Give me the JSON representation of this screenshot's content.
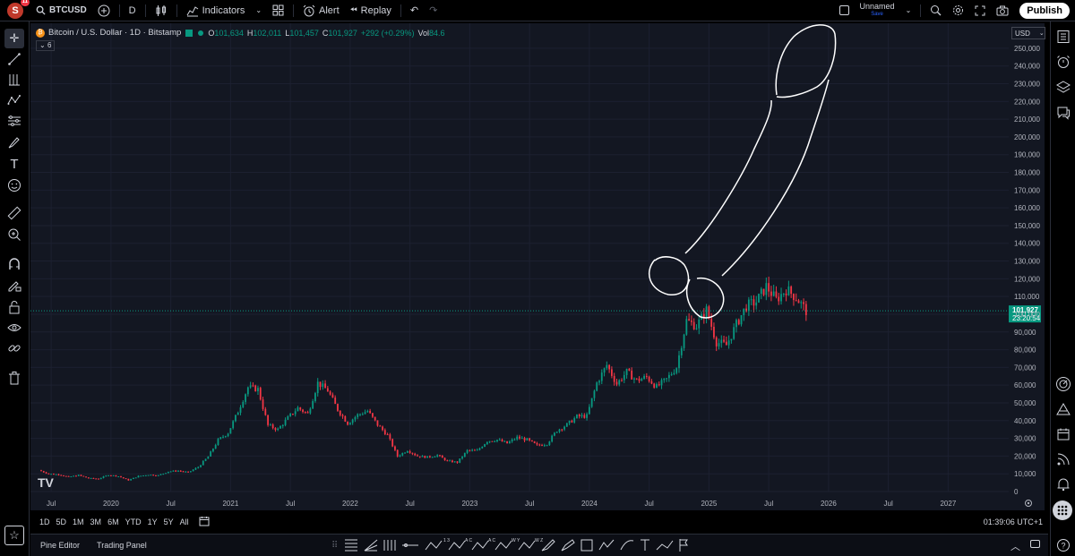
{
  "top": {
    "avatar_letter": "S",
    "avatar_badge": "11",
    "symbol": "BTCUSD",
    "interval": "D",
    "indicators": "Indicators",
    "alert": "Alert",
    "replay": "Replay",
    "layout_name": "Unnamed",
    "layout_status": "Save",
    "publish": "Publish"
  },
  "legend": {
    "title": "Bitcoin / U.S. Dollar · 1D · Bitstamp",
    "o_lbl": "O",
    "o": "101,634",
    "h_lbl": "H",
    "h": "102,011",
    "l_lbl": "L",
    "l": "101,457",
    "c_lbl": "C",
    "c": "101,927",
    "change": "+292 (+0.29%)",
    "vol_lbl": "Vol",
    "vol": "84.6",
    "collapse": "6"
  },
  "price_scale": {
    "currency": "USD",
    "labels": [
      "250,000",
      "240,000",
      "230,000",
      "220,000",
      "210,000",
      "200,000",
      "190,000",
      "180,000",
      "170,000",
      "160,000",
      "150,000",
      "140,000",
      "130,000",
      "120,000",
      "110,000",
      "100,000",
      "90,000",
      "80,000",
      "70,000",
      "60,000",
      "50,000",
      "40,000",
      "30,000",
      "20,000",
      "10,000",
      "0"
    ],
    "current_price": "101,927",
    "countdown": "23:20:54"
  },
  "time_scale": {
    "labels": [
      "Jul",
      "2020",
      "Jul",
      "2021",
      "Jul",
      "2022",
      "Jul",
      "2023",
      "Jul",
      "2024",
      "Jul",
      "2025",
      "Jul",
      "2026",
      "Jul",
      "2027"
    ]
  },
  "ranges": [
    "1D",
    "5D",
    "1M",
    "3M",
    "6M",
    "YTD",
    "1Y",
    "5Y",
    "All"
  ],
  "clock": "01:39:06 UTC+1",
  "footer": {
    "pine_editor": "Pine Editor",
    "trading_panel": "Trading Panel",
    "drawing_letters": [
      "1 3",
      "A C",
      "A C",
      "W Y",
      "W Z"
    ]
  },
  "watermark": "TV",
  "colors": {
    "up": "#089981",
    "down": "#f23645",
    "background": "#131722",
    "price_tag": "#089981"
  },
  "chart_data": {
    "type": "candlestick",
    "title": "Bitcoin / U.S. Dollar · 1D · Bitstamp",
    "ylabel": "USD",
    "ylim": [
      0,
      255000
    ],
    "x_range": [
      "2019-06",
      "2027-06"
    ],
    "close_series": [
      {
        "x": "2019-06",
        "y": 12000
      },
      {
        "x": "2019-07",
        "y": 10000
      },
      {
        "x": "2019-08",
        "y": 9600
      },
      {
        "x": "2019-09",
        "y": 8300
      },
      {
        "x": "2019-10",
        "y": 9200
      },
      {
        "x": "2019-11",
        "y": 7500
      },
      {
        "x": "2019-12",
        "y": 7200
      },
      {
        "x": "2020-01",
        "y": 9400
      },
      {
        "x": "2020-02",
        "y": 8600
      },
      {
        "x": "2020-03",
        "y": 6400
      },
      {
        "x": "2020-04",
        "y": 8700
      },
      {
        "x": "2020-05",
        "y": 9500
      },
      {
        "x": "2020-06",
        "y": 9100
      },
      {
        "x": "2020-07",
        "y": 11300
      },
      {
        "x": "2020-08",
        "y": 11700
      },
      {
        "x": "2020-09",
        "y": 10800
      },
      {
        "x": "2020-10",
        "y": 13800
      },
      {
        "x": "2020-11",
        "y": 19700
      },
      {
        "x": "2020-12",
        "y": 29000
      },
      {
        "x": "2021-01",
        "y": 33100
      },
      {
        "x": "2021-02",
        "y": 45200
      },
      {
        "x": "2021-03",
        "y": 58800
      },
      {
        "x": "2021-04",
        "y": 57700
      },
      {
        "x": "2021-05",
        "y": 37300
      },
      {
        "x": "2021-06",
        "y": 35000
      },
      {
        "x": "2021-07",
        "y": 41500
      },
      {
        "x": "2021-08",
        "y": 47100
      },
      {
        "x": "2021-09",
        "y": 43800
      },
      {
        "x": "2021-10",
        "y": 61300
      },
      {
        "x": "2021-11",
        "y": 57000
      },
      {
        "x": "2021-12",
        "y": 46200
      },
      {
        "x": "2022-01",
        "y": 38500
      },
      {
        "x": "2022-02",
        "y": 43200
      },
      {
        "x": "2022-03",
        "y": 45500
      },
      {
        "x": "2022-04",
        "y": 37600
      },
      {
        "x": "2022-05",
        "y": 31800
      },
      {
        "x": "2022-06",
        "y": 19900
      },
      {
        "x": "2022-07",
        "y": 23300
      },
      {
        "x": "2022-08",
        "y": 20000
      },
      {
        "x": "2022-09",
        "y": 19400
      },
      {
        "x": "2022-10",
        "y": 20500
      },
      {
        "x": "2022-11",
        "y": 17200
      },
      {
        "x": "2022-12",
        "y": 16500
      },
      {
        "x": "2023-01",
        "y": 23100
      },
      {
        "x": "2023-02",
        "y": 23100
      },
      {
        "x": "2023-03",
        "y": 28500
      },
      {
        "x": "2023-04",
        "y": 29200
      },
      {
        "x": "2023-05",
        "y": 27200
      },
      {
        "x": "2023-06",
        "y": 30500
      },
      {
        "x": "2023-07",
        "y": 29200
      },
      {
        "x": "2023-08",
        "y": 26000
      },
      {
        "x": "2023-09",
        "y": 27000
      },
      {
        "x": "2023-10",
        "y": 34500
      },
      {
        "x": "2023-11",
        "y": 37700
      },
      {
        "x": "2023-12",
        "y": 42300
      },
      {
        "x": "2024-01",
        "y": 42600
      },
      {
        "x": "2024-02",
        "y": 61200
      },
      {
        "x": "2024-03",
        "y": 71300
      },
      {
        "x": "2024-04",
        "y": 60700
      },
      {
        "x": "2024-05",
        "y": 67500
      },
      {
        "x": "2024-06",
        "y": 62700
      },
      {
        "x": "2024-07",
        "y": 64600
      },
      {
        "x": "2024-08",
        "y": 58900
      },
      {
        "x": "2024-09",
        "y": 63300
      },
      {
        "x": "2024-10",
        "y": 70200
      },
      {
        "x": "2024-11",
        "y": 96400
      },
      {
        "x": "2024-12",
        "y": 93400
      },
      {
        "x": "2025-01",
        "y": 102400
      },
      {
        "x": "2025-02",
        "y": 84300
      },
      {
        "x": "2025-03",
        "y": 82500
      },
      {
        "x": "2025-04",
        "y": 94200
      },
      {
        "x": "2025-05",
        "y": 104600
      },
      {
        "x": "2025-06",
        "y": 107100
      },
      {
        "x": "2025-07",
        "y": 115700
      },
      {
        "x": "2025-08",
        "y": 108200
      },
      {
        "x": "2025-09",
        "y": 114000
      },
      {
        "x": "2025-10",
        "y": 109500
      },
      {
        "x": "2025-11",
        "y": 101927
      }
    ],
    "last_price": 101927
  }
}
